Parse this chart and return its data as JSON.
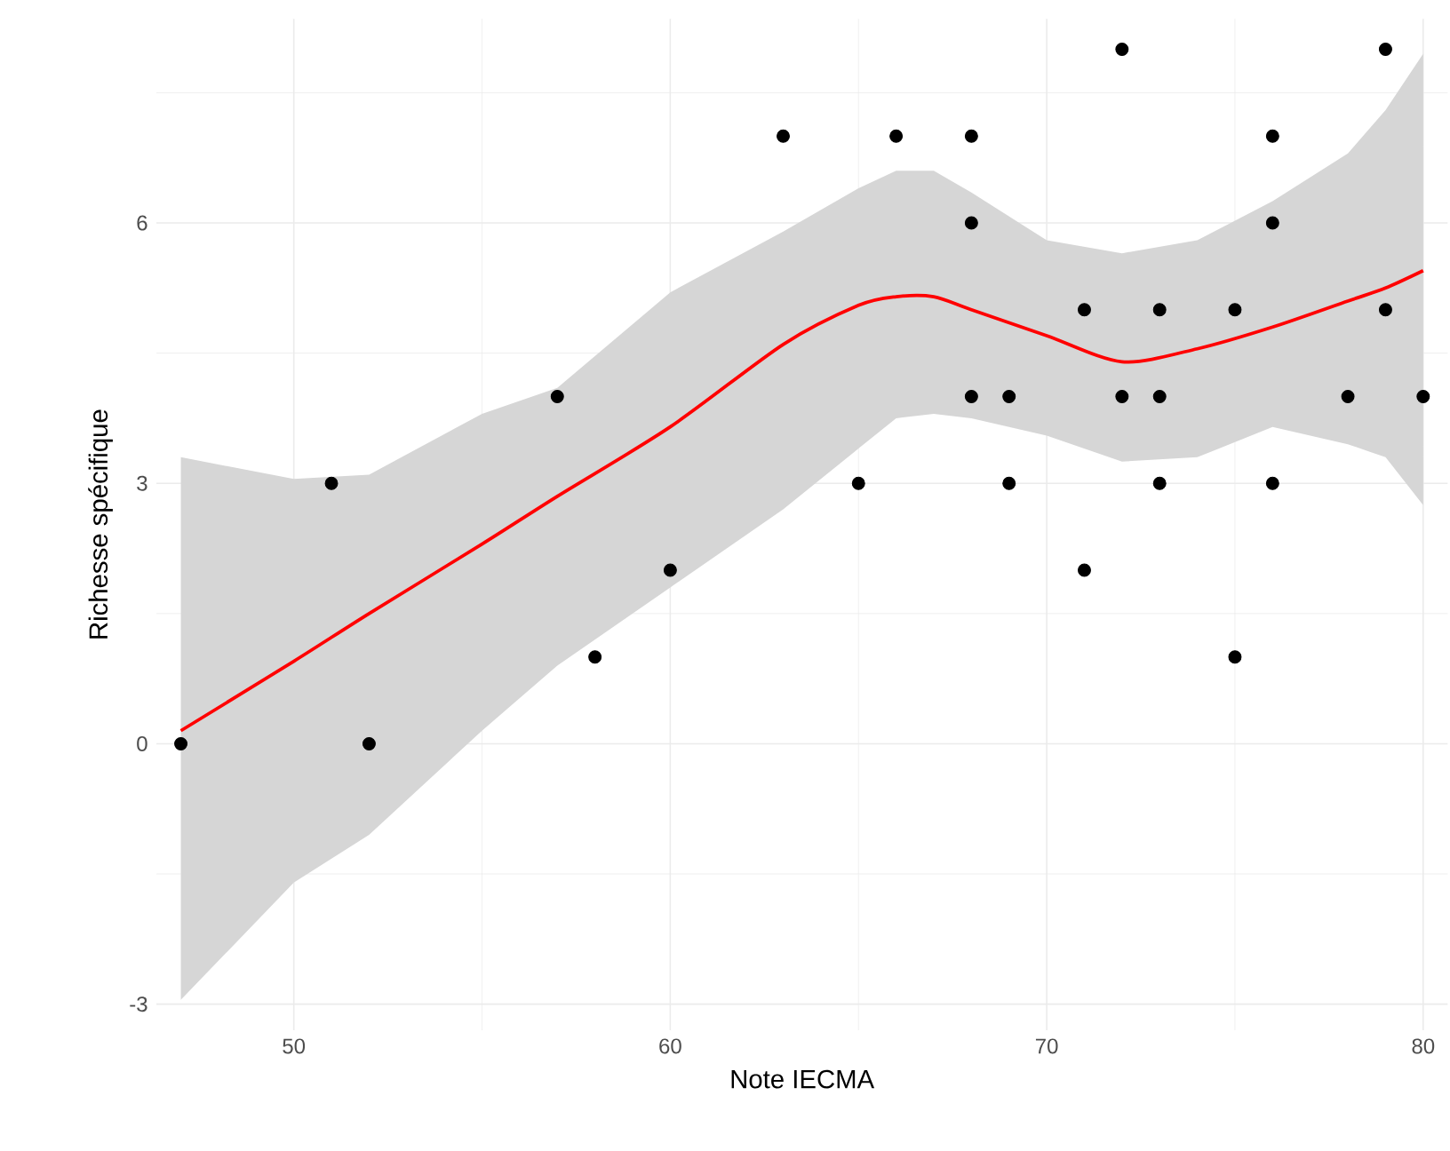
{
  "chart_data": {
    "type": "scatter",
    "xlabel": "Note IECMA",
    "ylabel": "Richesse spécifique",
    "xlim": [
      46.35,
      80.65
    ],
    "ylim": [
      -3.3,
      8.35
    ],
    "xticks": [
      50,
      60,
      70,
      80
    ],
    "yticks": [
      -3,
      0,
      3,
      6
    ],
    "grid": true,
    "series": [
      {
        "color": "#000000",
        "marker": "circle",
        "x": [
          47,
          51,
          52,
          57,
          58,
          60,
          63,
          65,
          66,
          68,
          68,
          68,
          69,
          69,
          71,
          71,
          72,
          72,
          73,
          73,
          73,
          75,
          75,
          76,
          76,
          76,
          78,
          79,
          79,
          80
        ],
        "values": [
          0,
          3,
          0,
          4,
          1,
          2,
          7,
          3,
          7,
          7,
          6,
          4,
          4,
          3,
          5,
          2,
          8,
          4,
          5,
          4,
          3,
          5,
          1,
          7,
          6,
          3,
          4,
          8,
          5,
          4
        ]
      },
      {
        "type": "line",
        "marker": "none",
        "color": "#ff0000",
        "x": [
          47,
          50,
          52,
          55,
          57,
          60,
          63,
          65,
          66,
          67,
          68,
          70,
          72,
          74,
          76,
          78,
          79,
          80
        ],
        "values": [
          0.15,
          0.95,
          1.5,
          2.3,
          2.85,
          3.65,
          4.6,
          5.05,
          5.15,
          5.15,
          5.0,
          4.7,
          4.4,
          4.55,
          4.8,
          5.1,
          5.25,
          5.45
        ],
        "lower": [
          -2.95,
          -1.6,
          -1.05,
          0.15,
          0.9,
          1.8,
          2.7,
          3.4,
          3.75,
          3.8,
          3.75,
          3.55,
          3.25,
          3.3,
          3.65,
          3.45,
          3.3,
          2.75
        ],
        "upper": [
          3.3,
          3.05,
          3.1,
          3.8,
          4.1,
          5.2,
          5.9,
          6.4,
          6.6,
          6.6,
          6.35,
          5.8,
          5.65,
          5.8,
          6.25,
          6.8,
          7.3,
          7.95
        ]
      }
    ]
  }
}
